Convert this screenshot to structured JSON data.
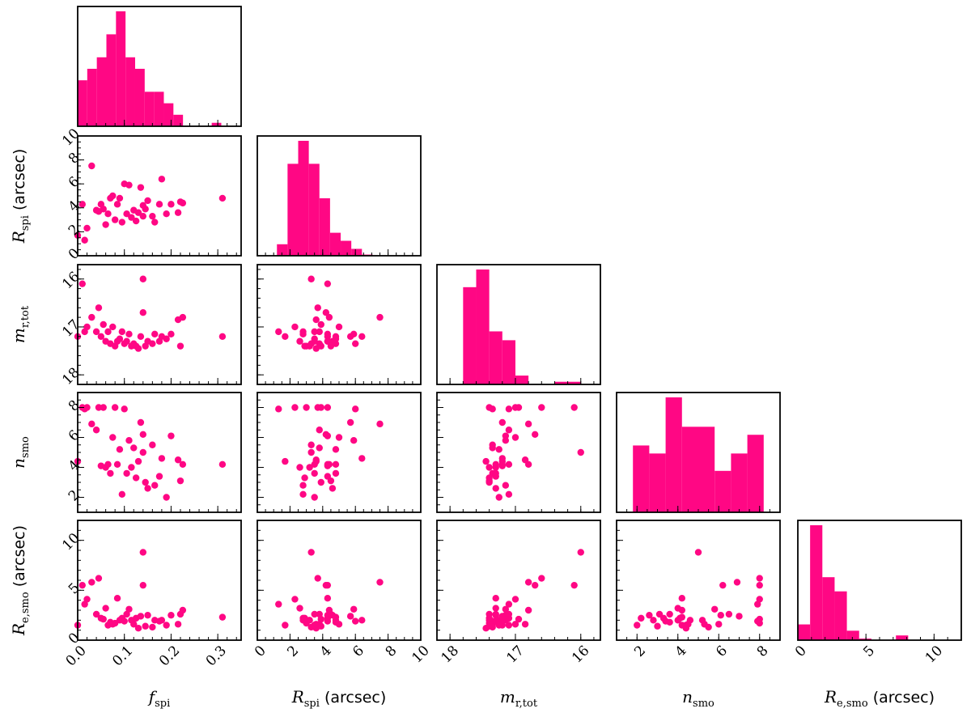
{
  "chart_data": {
    "type": "scatter-matrix",
    "color": "#ff0784",
    "variables": [
      {
        "key": "fspi",
        "sym": "f",
        "sub": "spi",
        "unit": "",
        "range": [
          0,
          0.35
        ],
        "reversed": false,
        "ticks": [
          {
            "v": 0,
            "label": "0.0"
          },
          {
            "v": 0.1,
            "label": "0.1"
          },
          {
            "v": 0.2,
            "label": "0.2"
          },
          {
            "v": 0.3,
            "label": "0.3"
          }
        ],
        "minor": 0.02
      },
      {
        "key": "rspi",
        "sym": "R",
        "sub": "spi",
        "unit": "(arcsec)",
        "range": [
          0,
          10
        ],
        "reversed": false,
        "ticks": [
          {
            "v": 0,
            "label": "0"
          },
          {
            "v": 2,
            "label": "2"
          },
          {
            "v": 4,
            "label": "4"
          },
          {
            "v": 6,
            "label": "6"
          },
          {
            "v": 8,
            "label": "8"
          },
          {
            "v": 10,
            "label": "10"
          }
        ],
        "minor": 0.5
      },
      {
        "key": "mr",
        "sym": "m",
        "sub": "r,tot",
        "unit": "",
        "range": [
          18.2,
          15.7
        ],
        "reversed": true,
        "ticks": [
          {
            "v": 18,
            "label": "18"
          },
          {
            "v": 17,
            "label": "17"
          },
          {
            "v": 16,
            "label": "16"
          }
        ],
        "minor": 0.2
      },
      {
        "key": "nsmo",
        "sym": "n",
        "sub": "smo",
        "unit": "",
        "range": [
          1,
          9
        ],
        "reversed": false,
        "ticks": [
          {
            "v": 2,
            "label": "2"
          },
          {
            "v": 4,
            "label": "4"
          },
          {
            "v": 6,
            "label": "6"
          },
          {
            "v": 8,
            "label": "8"
          }
        ],
        "minor": 0.5
      },
      {
        "key": "resmo",
        "sym": "R",
        "sub": "e,smo",
        "unit": "(arcsec)",
        "range": [
          0,
          12
        ],
        "reversed": false,
        "ticks": [
          {
            "v": 0,
            "label": "0"
          },
          {
            "v": 5,
            "label": "5"
          },
          {
            "v": 10,
            "label": "10"
          }
        ],
        "minor": 1
      }
    ],
    "histograms": [
      {
        "edges": [
          0,
          0.0205,
          0.041,
          0.0615,
          0.082,
          0.1025,
          0.123,
          0.1435,
          0.164,
          0.1845,
          0.205,
          0.2255,
          0.246,
          0.2665,
          0.287,
          0.3075
        ],
        "heights": [
          4,
          5,
          6,
          8,
          10,
          6,
          5,
          3,
          3,
          2,
          1,
          0,
          0,
          0,
          0.3
        ]
      },
      {
        "edges": [
          1.2,
          1.85,
          2.5,
          3.15,
          3.8,
          4.45,
          5.1,
          5.75,
          6.4,
          7.05,
          7.7
        ],
        "heights": [
          1,
          8,
          10,
          8,
          5,
          2,
          1.3,
          0.6,
          0.1,
          0
        ]
      },
      {
        "edges": [
          17.8,
          17.6,
          17.4,
          17.2,
          17.0,
          16.8,
          16.6,
          16.4,
          16.2,
          16.0
        ],
        "heights": [
          11,
          13,
          6,
          5,
          1,
          0,
          0,
          0.3,
          0.3
        ]
      },
      {
        "edges": [
          1.8,
          2.6,
          3.4,
          4.2,
          5.0,
          5.8,
          6.6,
          7.4,
          8.2
        ],
        "heights": [
          5,
          4.4,
          8.6,
          6.4,
          6.4,
          3.1,
          4.4,
          5.8
        ]
      },
      {
        "edges": [
          0,
          0.9,
          1.8,
          2.7,
          3.6,
          4.5,
          5.4,
          6.3,
          7.2,
          8.1,
          9.0
        ],
        "heights": [
          1,
          7.3,
          4,
          3.1,
          0.6,
          0.1,
          0,
          0,
          0.3,
          0
        ]
      }
    ],
    "points": [
      {
        "fspi": 0.0,
        "rspi": 1.7,
        "mr": 17.2,
        "nsmo": 4.4,
        "resmo": 1.5
      },
      {
        "fspi": 0.01,
        "rspi": 4.3,
        "mr": 16.1,
        "nsmo": 8.0,
        "resmo": 5.5
      },
      {
        "fspi": 0.015,
        "rspi": 1.3,
        "mr": 17.1,
        "nsmo": 7.9,
        "resmo": 3.6
      },
      {
        "fspi": 0.02,
        "rspi": 2.3,
        "mr": 17.0,
        "nsmo": 8.0,
        "resmo": 4.1
      },
      {
        "fspi": 0.03,
        "rspi": 7.5,
        "mr": 16.8,
        "nsmo": 6.9,
        "resmo": 5.8
      },
      {
        "fspi": 0.04,
        "rspi": 3.8,
        "mr": 17.1,
        "nsmo": 6.5,
        "resmo": 2.6
      },
      {
        "fspi": 0.045,
        "rspi": 3.7,
        "mr": 16.6,
        "nsmo": 8.0,
        "resmo": 6.2
      },
      {
        "fspi": 0.05,
        "rspi": 4.3,
        "mr": 17.2,
        "nsmo": 4.1,
        "resmo": 2.2
      },
      {
        "fspi": 0.055,
        "rspi": 3.9,
        "mr": 16.95,
        "nsmo": 8.0,
        "resmo": 2.1
      },
      {
        "fspi": 0.06,
        "rspi": 2.6,
        "mr": 17.3,
        "nsmo": 4.0,
        "resmo": 3.2
      },
      {
        "fspi": 0.065,
        "rspi": 3.5,
        "mr": 17.1,
        "nsmo": 4.2,
        "resmo": 1.5
      },
      {
        "fspi": 0.07,
        "rspi": 4.8,
        "mr": 17.35,
        "nsmo": 3.6,
        "resmo": 1.8
      },
      {
        "fspi": 0.075,
        "rspi": 5.0,
        "mr": 17.0,
        "nsmo": 6.0,
        "resmo": 1.6
      },
      {
        "fspi": 0.08,
        "rspi": 3.0,
        "mr": 17.4,
        "nsmo": 8.0,
        "resmo": 1.7
      },
      {
        "fspi": 0.085,
        "rspi": 4.3,
        "mr": 17.3,
        "nsmo": 4.2,
        "resmo": 4.2
      },
      {
        "fspi": 0.09,
        "rspi": 4.8,
        "mr": 17.25,
        "nsmo": 5.2,
        "resmo": 2.0
      },
      {
        "fspi": 0.095,
        "rspi": 2.8,
        "mr": 17.1,
        "nsmo": 2.2,
        "resmo": 2.2
      },
      {
        "fspi": 0.1,
        "rspi": 6.0,
        "mr": 17.35,
        "nsmo": 7.9,
        "resmo": 1.9
      },
      {
        "fspi": 0.105,
        "rspi": 3.5,
        "mr": 17.3,
        "nsmo": 3.6,
        "resmo": 2.6
      },
      {
        "fspi": 0.11,
        "rspi": 5.9,
        "mr": 17.15,
        "nsmo": 5.8,
        "resmo": 3.1
      },
      {
        "fspi": 0.115,
        "rspi": 3.2,
        "mr": 17.4,
        "nsmo": 4.0,
        "resmo": 2.0
      },
      {
        "fspi": 0.12,
        "rspi": 3.8,
        "mr": 17.35,
        "nsmo": 5.3,
        "resmo": 1.6
      },
      {
        "fspi": 0.125,
        "rspi": 2.9,
        "mr": 17.4,
        "nsmo": 3.3,
        "resmo": 2.2
      },
      {
        "fspi": 0.13,
        "rspi": 3.6,
        "mr": 17.45,
        "nsmo": 4.4,
        "resmo": 1.2
      },
      {
        "fspi": 0.135,
        "rspi": 5.7,
        "mr": 17.2,
        "nsmo": 7.0,
        "resmo": 2.4
      },
      {
        "fspi": 0.14,
        "rspi": 4.2,
        "mr": 16.7,
        "nsmo": 6.2,
        "resmo": 5.5
      },
      {
        "fspi": 0.14,
        "rspi": 3.3,
        "mr": 16.0,
        "nsmo": 5.0,
        "resmo": 8.8
      },
      {
        "fspi": 0.145,
        "rspi": 3.9,
        "mr": 17.4,
        "nsmo": 3.0,
        "resmo": 1.4
      },
      {
        "fspi": 0.15,
        "rspi": 4.6,
        "mr": 17.3,
        "nsmo": 2.6,
        "resmo": 2.5
      },
      {
        "fspi": 0.16,
        "rspi": 3.3,
        "mr": 17.35,
        "nsmo": 5.5,
        "resmo": 1.3
      },
      {
        "fspi": 0.165,
        "rspi": 2.8,
        "mr": 17.15,
        "nsmo": 2.8,
        "resmo": 2.0
      },
      {
        "fspi": 0.175,
        "rspi": 4.3,
        "mr": 17.3,
        "nsmo": 3.4,
        "resmo": 1.9
      },
      {
        "fspi": 0.18,
        "rspi": 6.4,
        "mr": 17.2,
        "nsmo": 4.6,
        "resmo": 2.0
      },
      {
        "fspi": 0.19,
        "rspi": 3.5,
        "mr": 17.25,
        "nsmo": 2.0,
        "resmo": 1.5
      },
      {
        "fspi": 0.2,
        "rspi": 4.3,
        "mr": 17.15,
        "nsmo": 6.1,
        "resmo": 2.5
      },
      {
        "fspi": 0.215,
        "rspi": 3.6,
        "mr": 16.85,
        "nsmo": 4.5,
        "resmo": 1.6
      },
      {
        "fspi": 0.22,
        "rspi": 4.5,
        "mr": 17.4,
        "nsmo": 3.1,
        "resmo": 2.6
      },
      {
        "fspi": 0.225,
        "rspi": 4.4,
        "mr": 16.8,
        "nsmo": 4.2,
        "resmo": 3.0
      },
      {
        "fspi": 0.31,
        "rspi": 4.8,
        "mr": 17.2,
        "nsmo": 4.2,
        "resmo": 2.3
      }
    ]
  }
}
